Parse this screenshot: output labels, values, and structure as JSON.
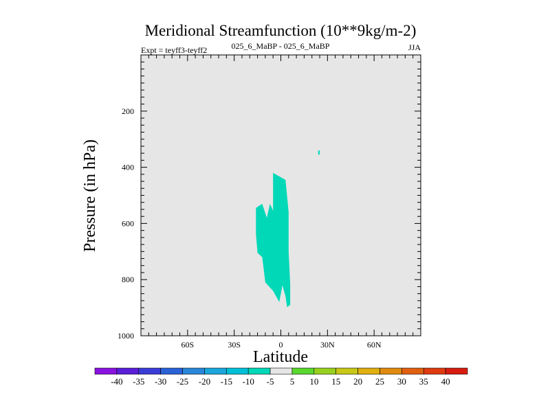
{
  "chart_data": {
    "type": "contour",
    "title": "Meridional Streamfunction (10**9kg/m-2)",
    "left_label": "Expt = teyff3-teyff2",
    "center_label": "025_6_MaBP - 025_6_MaBP",
    "right_label": "JJA",
    "xlabel": "Latitude",
    "ylabel": "Pressure (in hPa)",
    "xlim": [
      -90,
      90
    ],
    "ylim": [
      1000,
      0
    ],
    "x_ticks": [
      {
        "value": -60,
        "label": "60S"
      },
      {
        "value": -30,
        "label": "30S"
      },
      {
        "value": 0,
        "label": "0"
      },
      {
        "value": 30,
        "label": "30N"
      },
      {
        "value": 60,
        "label": "60N"
      }
    ],
    "y_ticks": [
      {
        "value": 200,
        "label": "200"
      },
      {
        "value": 400,
        "label": "400"
      },
      {
        "value": 600,
        "label": "600"
      },
      {
        "value": 800,
        "label": "800"
      },
      {
        "value": 1000,
        "label": "1000"
      }
    ],
    "y_minor_ticks": [
      25,
      50,
      75,
      100,
      125,
      150,
      175,
      225,
      250,
      275,
      300,
      325,
      350,
      375,
      425,
      450,
      475,
      500,
      525,
      550,
      575,
      625,
      650,
      675,
      700,
      725,
      750,
      775,
      825,
      850,
      875,
      900,
      925,
      950,
      975
    ],
    "x_minor_ticks": [
      -85,
      -80,
      -75,
      -70,
      -65,
      -55,
      -50,
      -45,
      -40,
      -35,
      -25,
      -20,
      -15,
      -10,
      -5,
      5,
      10,
      15,
      20,
      25,
      35,
      40,
      45,
      50,
      55,
      65,
      70,
      75,
      80,
      85
    ],
    "background_color": "#e6e6e6",
    "colorbar": {
      "levels": [
        -40,
        -35,
        -30,
        -25,
        -20,
        -15,
        -10,
        -5,
        5,
        10,
        15,
        20,
        25,
        30,
        35,
        40
      ],
      "colors": [
        "#8a12e0",
        "#5a1ed8",
        "#3a3cd8",
        "#2a62d8",
        "#2a86da",
        "#1aa6dc",
        "#00c0d8",
        "#00d8b8",
        "#e6e6e6",
        "#5ad830",
        "#98d020",
        "#c8c818",
        "#e0b010",
        "#e08a10",
        "#e06010",
        "#e03a10",
        "#d81c10"
      ]
    },
    "regions": [
      {
        "level_range": "-10 to -5",
        "color": "#00d8b8",
        "polygon": [
          [
            -5,
            420
          ],
          [
            3,
            445
          ],
          [
            5,
            560
          ],
          [
            5,
            700
          ],
          [
            6,
            815
          ],
          [
            6,
            890
          ],
          [
            4,
            898
          ],
          [
            3,
            860
          ],
          [
            1,
            820
          ],
          [
            -1,
            880
          ],
          [
            -3,
            860
          ],
          [
            -5,
            840
          ],
          [
            -10,
            810
          ],
          [
            -12,
            720
          ],
          [
            -15,
            705
          ],
          [
            -16,
            640
          ],
          [
            -16,
            545
          ],
          [
            -12,
            530
          ],
          [
            -9,
            580
          ],
          [
            -7,
            530
          ],
          [
            -5,
            555
          ]
        ]
      },
      {
        "level_range": "-10 to -5",
        "color": "#00d8b8",
        "polygon": [
          [
            24,
            340
          ],
          [
            25,
            340
          ],
          [
            25,
            355
          ],
          [
            24,
            355
          ]
        ]
      }
    ]
  }
}
